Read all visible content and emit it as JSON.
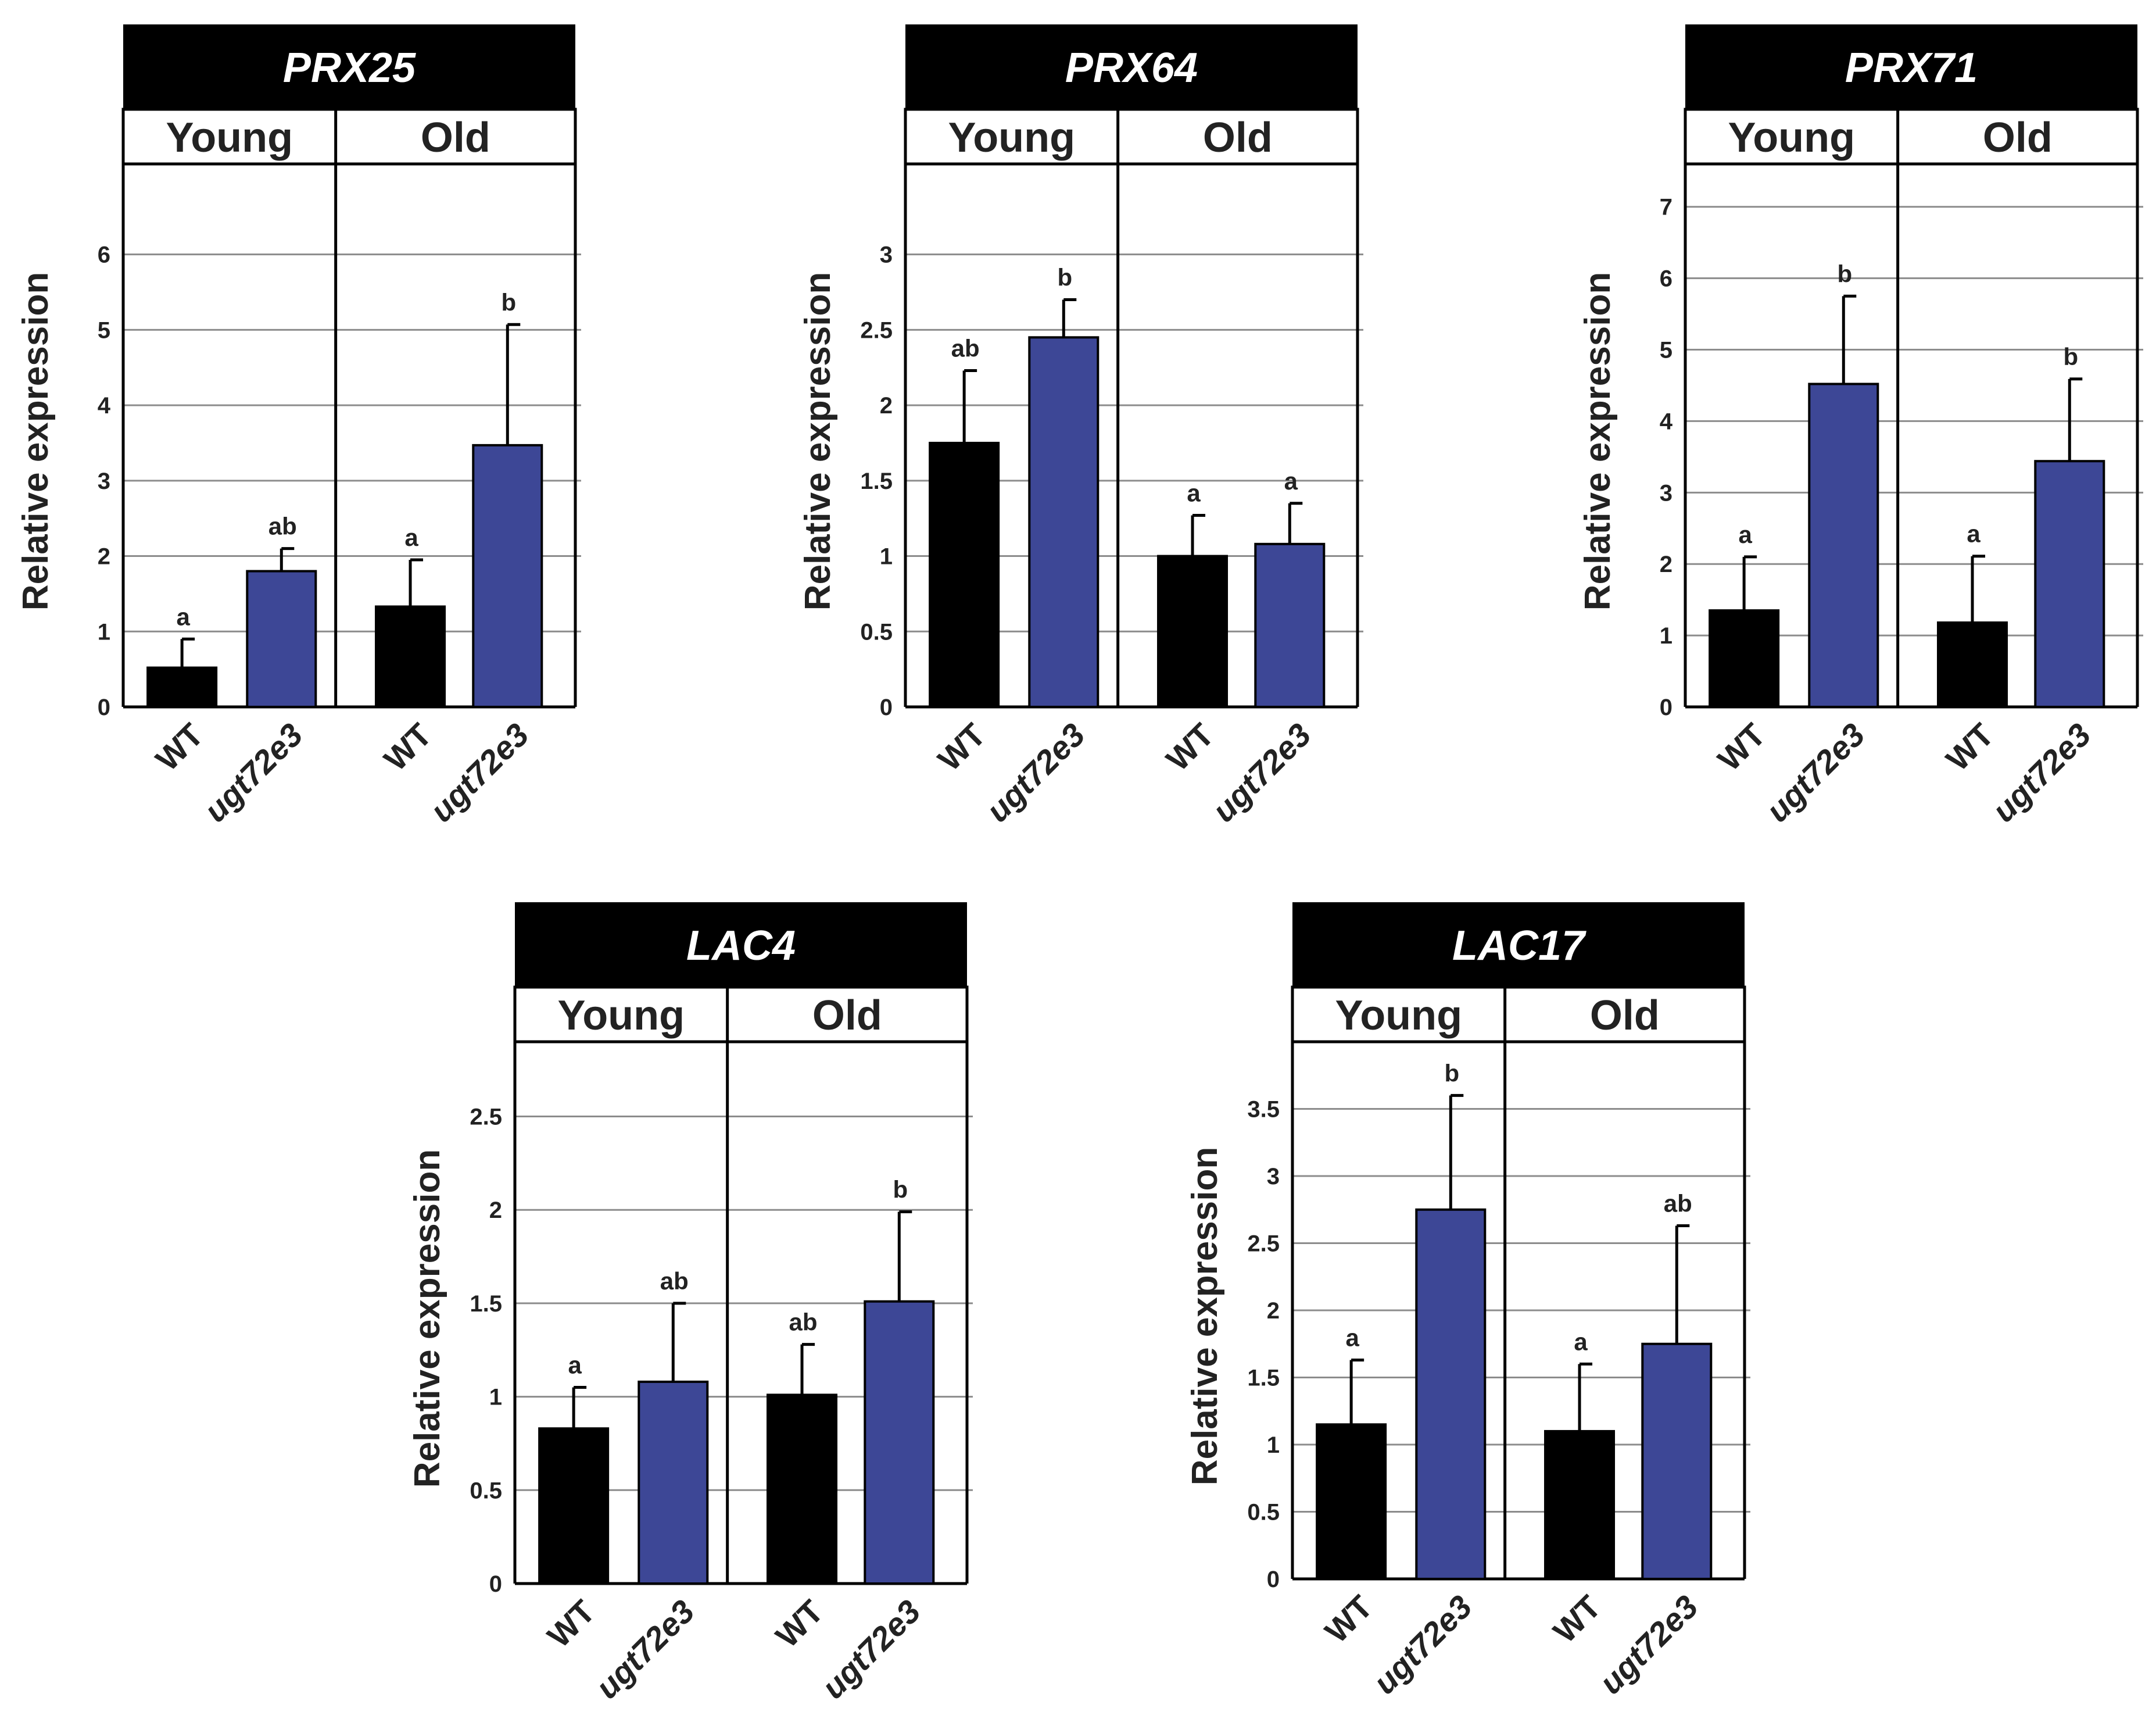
{
  "figure": {
    "ylabel": "Relative expression",
    "groups": [
      "Young",
      "Old"
    ],
    "genotypes": [
      "WT",
      "ugt72e3"
    ],
    "colors": {
      "WT": "#000000",
      "ugt72e3": "#3d4796",
      "header_bg": "#000000",
      "header_text": "#ffffff",
      "grid": "#8c8c8c"
    }
  },
  "chart_data": [
    {
      "type": "bar",
      "title": "PRX25",
      "ylabel": "Relative expression",
      "ylim": [
        0,
        7.2
      ],
      "yticks": [
        "0",
        "1",
        "2",
        "3",
        "4",
        "5",
        "6"
      ],
      "categories": [
        "WT Young",
        "ugt72e3 Young",
        "WT Old",
        "ugt72e3 Old"
      ],
      "values": [
        0.52,
        1.8,
        1.33,
        3.47
      ],
      "errors": [
        0.38,
        0.3,
        0.62,
        1.6
      ],
      "letters": [
        "a",
        "ab",
        "a",
        "b"
      ]
    },
    {
      "type": "bar",
      "title": "PRX64",
      "ylabel": "Relative expression",
      "ylim": [
        0,
        3.6
      ],
      "yticks": [
        "0",
        "0.5",
        "1",
        "1.5",
        "2",
        "2.5",
        "3"
      ],
      "categories": [
        "WT Young",
        "ugt72e3 Young",
        "WT Old",
        "ugt72e3 Old"
      ],
      "values": [
        1.75,
        2.45,
        1.0,
        1.08
      ],
      "errors": [
        0.48,
        0.25,
        0.27,
        0.27
      ],
      "letters": [
        "ab",
        "b",
        "a",
        "a"
      ]
    },
    {
      "type": "bar",
      "title": "PRX71",
      "ylabel": "Relative expression",
      "ylim": [
        0,
        7.6
      ],
      "yticks": [
        "0",
        "1",
        "2",
        "3",
        "4",
        "5",
        "6",
        "7"
      ],
      "categories": [
        "WT Young",
        "ugt72e3 Young",
        "WT Old",
        "ugt72e3 Old"
      ],
      "values": [
        1.35,
        4.52,
        1.18,
        3.44
      ],
      "errors": [
        0.75,
        1.23,
        0.93,
        1.15
      ],
      "letters": [
        "a",
        "b",
        "a",
        "b"
      ]
    },
    {
      "type": "bar",
      "title": "LAC4",
      "ylabel": "Relative expression",
      "ylim": [
        0,
        2.9
      ],
      "yticks": [
        "0",
        "0.5",
        "1",
        "1.5",
        "2",
        "2.5"
      ],
      "categories": [
        "WT Young",
        "ugt72e3 Young",
        "WT Old",
        "ugt72e3 Old"
      ],
      "values": [
        0.83,
        1.08,
        1.01,
        1.51
      ],
      "errors": [
        0.22,
        0.42,
        0.27,
        0.48
      ],
      "letters": [
        "a",
        "ab",
        "ab",
        "b"
      ]
    },
    {
      "type": "bar",
      "title": "LAC17",
      "ylabel": "Relative expression",
      "ylim": [
        0,
        4.0
      ],
      "yticks": [
        "0",
        "0.5",
        "1",
        "1.5",
        "2",
        "2.5",
        "3",
        "3.5"
      ],
      "categories": [
        "WT Young",
        "ugt72e3 Young",
        "WT Old",
        "ugt72e3 Old"
      ],
      "values": [
        1.15,
        2.75,
        1.1,
        1.75
      ],
      "errors": [
        0.48,
        0.85,
        0.5,
        0.88
      ],
      "letters": [
        "a",
        "b",
        "a",
        "ab"
      ]
    }
  ]
}
